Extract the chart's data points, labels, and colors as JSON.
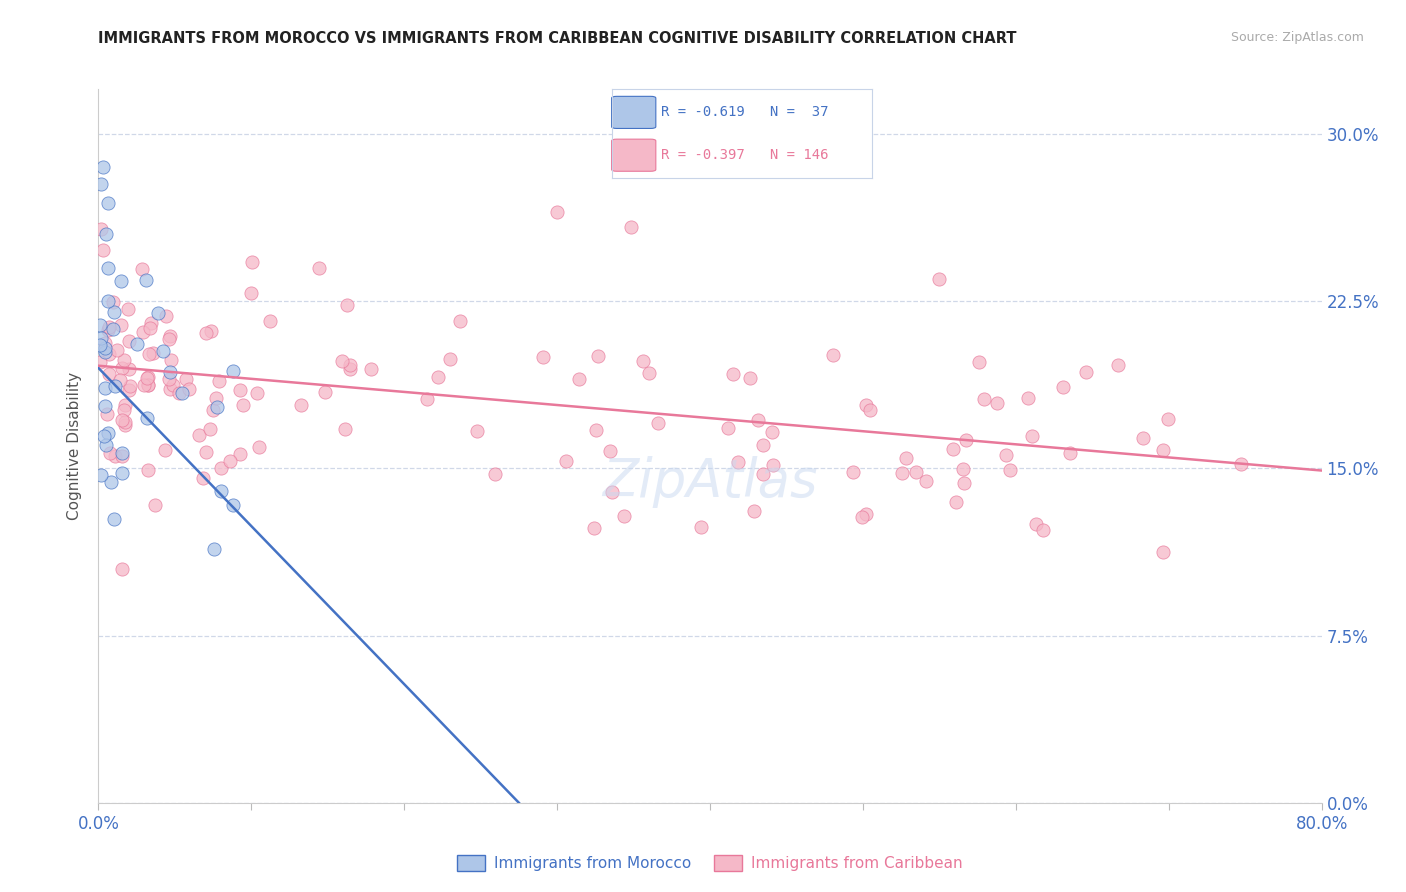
{
  "title": "IMMIGRANTS FROM MOROCCO VS IMMIGRANTS FROM CARIBBEAN COGNITIVE DISABILITY CORRELATION CHART",
  "source": "Source: ZipAtlas.com",
  "ylabel": "Cognitive Disability",
  "ytick_labels": [
    "0.0%",
    "7.5%",
    "15.0%",
    "22.5%",
    "30.0%"
  ],
  "ytick_values": [
    0.0,
    0.075,
    0.15,
    0.225,
    0.3
  ],
  "xlim": [
    0.0,
    0.8
  ],
  "ylim": [
    0.0,
    0.32
  ],
  "legend_r_morocco": "-0.619",
  "legend_n_morocco": "37",
  "legend_r_caribbean": "-0.397",
  "legend_n_caribbean": "146",
  "color_morocco_fill": "#aec6e8",
  "color_caribbean_fill": "#f5b8c8",
  "color_morocco_line": "#4472c4",
  "color_caribbean_line": "#e8789a",
  "color_axis_labels": "#4472c4",
  "color_grid": "#d0d8e8",
  "background_color": "#ffffff",
  "morocco_line_x": [
    0.0,
    0.275
  ],
  "morocco_line_y": [
    0.195,
    0.0
  ],
  "caribbean_line_x": [
    0.0,
    0.8
  ],
  "caribbean_line_y": [
    0.196,
    0.149
  ]
}
